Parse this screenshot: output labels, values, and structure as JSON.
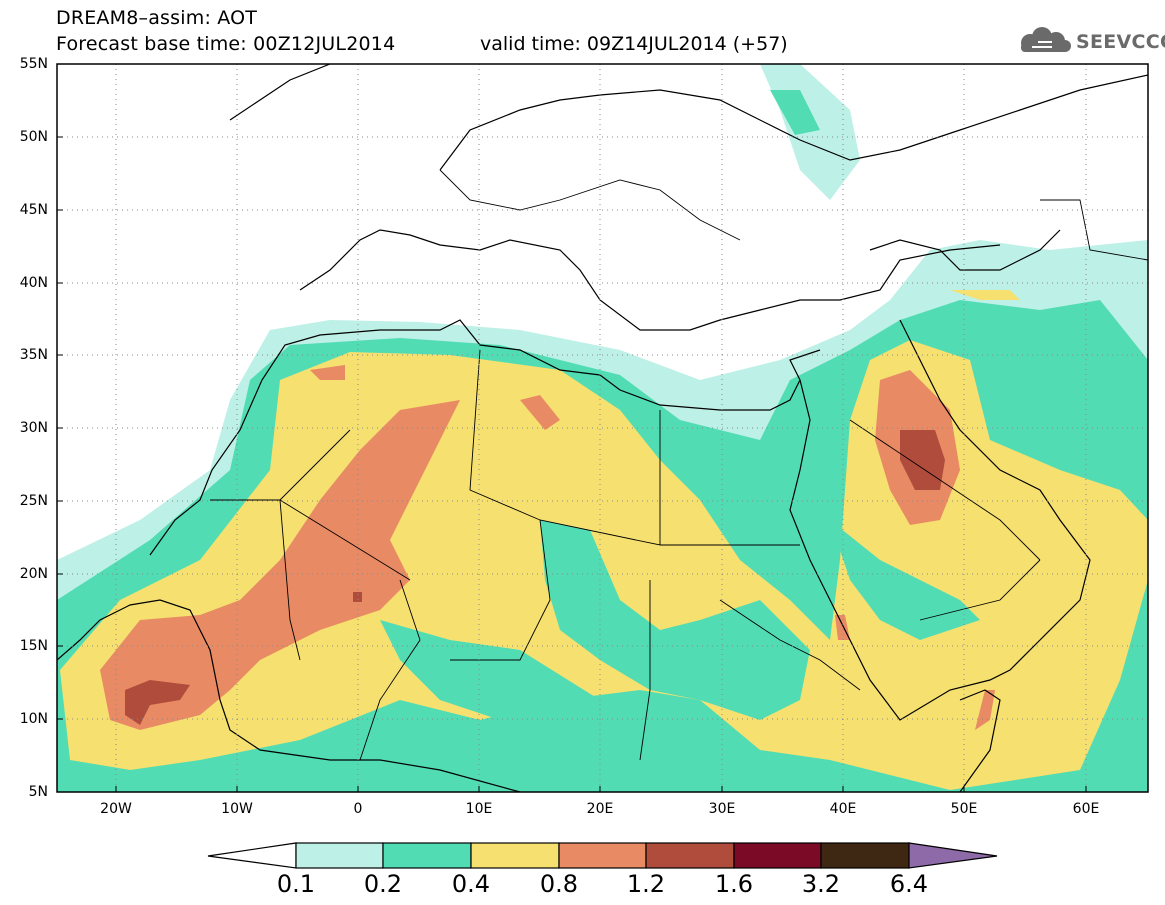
{
  "header": {
    "line1": "DREAM8–assim: AOT",
    "line2": "Forecast base time: 00Z12JUL2014",
    "valid": "valid time: 09Z14JUL2014 (+57)"
  },
  "logo": {
    "text": "SEEVCCC",
    "icon": "cloud-icon"
  },
  "axes": {
    "lat_labels": [
      "55N",
      "50N",
      "45N",
      "40N",
      "35N",
      "30N",
      "25N",
      "20N",
      "15N",
      "10N",
      "5N"
    ],
    "lon_labels": [
      "20W",
      "10W",
      "0",
      "10E",
      "20E",
      "30E",
      "40E",
      "50E",
      "60E"
    ]
  },
  "colorbar": {
    "labels": [
      "0.1",
      "0.2",
      "0.4",
      "0.8",
      "1.2",
      "1.6",
      "3.2",
      "6.4"
    ],
    "colors": [
      "#ffffff",
      "#bdf0e6",
      "#52dcb4",
      "#f5e070",
      "#e88a64",
      "#b04c3c",
      "#7a0a26",
      "#3e2814",
      "#8e6aa8"
    ]
  },
  "colors": {
    "land_outline": "#000000",
    "grid": "#7a7a7a",
    "aot_0_1": "#bdf0e6",
    "aot_0_2": "#52dcb4",
    "aot_0_4": "#f5e070",
    "aot_0_8": "#e88a64",
    "aot_1_2": "#b04c3c"
  }
}
